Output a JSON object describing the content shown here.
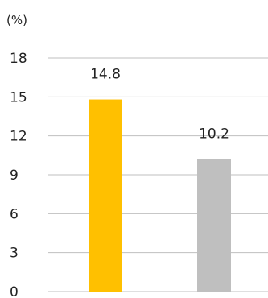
{
  "chart_data": {
    "type": "bar",
    "title": "",
    "unit_label": "(%)",
    "xlabel": "",
    "ylabel": "",
    "categories": [
      "",
      ""
    ],
    "values": [
      14.8,
      10.2
    ],
    "data_labels": [
      "14.8",
      "10.2"
    ],
    "bar_colors": [
      "#ffc000",
      "#bfbfbf"
    ],
    "ylim": [
      0,
      18
    ],
    "yticks": [
      0,
      3,
      6,
      9,
      12,
      15,
      18
    ],
    "ytick_labels": [
      "0",
      "3",
      "6",
      "9",
      "12",
      "15",
      "18"
    ],
    "grid": true,
    "legend": "none"
  }
}
